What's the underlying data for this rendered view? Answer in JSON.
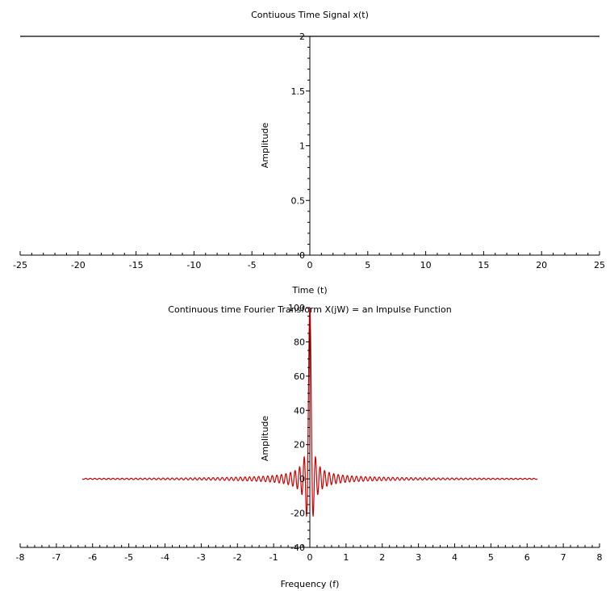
{
  "chart_data": [
    {
      "type": "line",
      "title": "Contiuous Time Signal x(t)",
      "xlabel": "Time (t)",
      "ylabel": "Amplitude",
      "xlim": [
        -25,
        25
      ],
      "ylim": [
        0,
        2
      ],
      "xticks": [
        -25,
        -20,
        -15,
        -10,
        -5,
        0,
        5,
        10,
        15,
        20,
        25
      ],
      "xtick_labels": [
        "-25",
        "-20",
        "-15",
        "-10",
        "-5",
        "0",
        "5",
        "10",
        "15",
        "20",
        "25"
      ],
      "yticks": [
        0,
        0.5,
        1,
        1.5,
        2
      ],
      "ytick_labels": [
        "0",
        "0.5",
        "1",
        "1.5",
        "2"
      ],
      "series": [
        {
          "color": "#000000",
          "x": [
            -25,
            25
          ],
          "y": [
            2,
            2
          ]
        }
      ]
    },
    {
      "type": "line",
      "title": "Continuous time Fourier Transform X(jW) = an Impulse Function",
      "xlabel": "Frequency (f)",
      "ylabel": "Amplitude",
      "xlim": [
        -8,
        8
      ],
      "ylim": [
        -40,
        100
      ],
      "xticks": [
        -8,
        -7,
        -6,
        -5,
        -4,
        -3,
        -2,
        -1,
        0,
        1,
        2,
        3,
        4,
        5,
        6,
        7,
        8
      ],
      "xtick_labels": [
        "-8",
        "-7",
        "-6",
        "-5",
        "-4",
        "-3",
        "-2",
        "-1",
        "0",
        "1",
        "2",
        "3",
        "4",
        "5",
        "6",
        "7",
        "8"
      ],
      "yticks": [
        -40,
        -20,
        0,
        20,
        40,
        60,
        80,
        100
      ],
      "ytick_labels": [
        "-40",
        "-20",
        "0",
        "20",
        "40",
        "60",
        "80",
        "100"
      ],
      "series": [
        {
          "color": "#cc0000",
          "function": "2*sin(T*w)/w",
          "T": 50,
          "w_range": [
            -6.283,
            6.283
          ],
          "peak": 100
        }
      ]
    }
  ]
}
